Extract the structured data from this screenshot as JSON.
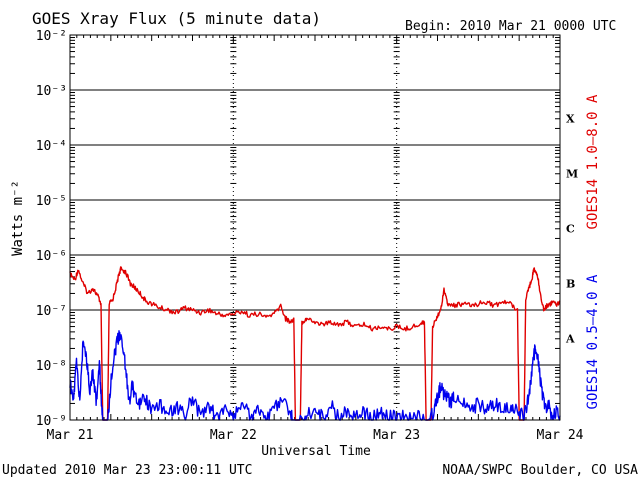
{
  "header": {
    "title": "GOES Xray Flux (5 minute data)",
    "begin": "Begin:  2010 Mar 21 0000 UTC"
  },
  "footer": {
    "updated": "Updated 2010 Mar 23 23:00:11 UTC",
    "credit": "NOAA/SWPC Boulder, CO USA"
  },
  "colors": {
    "long": "#e00000",
    "short": "#0000ee",
    "axis": "#000000"
  },
  "chart_data": {
    "type": "line",
    "title": "GOES Xray Flux (5 minute data)",
    "xlabel": "Universal Time",
    "ylabel": "Watts m⁻²",
    "y_scale": "log",
    "ylim": [
      1e-09,
      0.01
    ],
    "y_ticks": [
      1e-09,
      1e-08,
      1e-07,
      1e-06,
      1e-05,
      0.0001,
      0.001,
      0.01
    ],
    "y_tick_labels": [
      "10⁻⁹",
      "10⁻⁸",
      "10⁻⁷",
      "10⁻⁶",
      "10⁻⁵",
      "10⁻⁴",
      "10⁻³",
      "10⁻²"
    ],
    "x_tick_labels": [
      "Mar 21",
      "Mar 22",
      "Mar 23",
      "Mar 24"
    ],
    "xlim_days": [
      0,
      3
    ],
    "x_unit": "days since 2010 Mar 21 00:00 UTC",
    "flare_classes": [
      {
        "label": "A",
        "flux": 1e-08
      },
      {
        "label": "B",
        "flux": 1e-07
      },
      {
        "label": "C",
        "flux": 1e-06
      },
      {
        "label": "M",
        "flux": 1e-05
      },
      {
        "label": "X",
        "flux": 0.0001
      }
    ],
    "series": [
      {
        "name": "GOES14 1.0–8.0 A",
        "color": "#e00000",
        "points": [
          [
            0.0,
            4.5e-07
          ],
          [
            0.03,
            3.5e-07
          ],
          [
            0.05,
            5.5e-07
          ],
          [
            0.08,
            3e-07
          ],
          [
            0.11,
            2e-07
          ],
          [
            0.14,
            2.5e-07
          ],
          [
            0.17,
            1.8e-07
          ],
          [
            0.19,
            1.3e-07
          ],
          [
            0.2,
            1e-09
          ],
          [
            0.23,
            1e-09
          ],
          [
            0.24,
            1.3e-07
          ],
          [
            0.26,
            1.5e-07
          ],
          [
            0.28,
            2.5e-07
          ],
          [
            0.3,
            4.5e-07
          ],
          [
            0.31,
            5.5e-07
          ],
          [
            0.34,
            5e-07
          ],
          [
            0.37,
            3e-07
          ],
          [
            0.4,
            2.5e-07
          ],
          [
            0.43,
            2e-07
          ],
          [
            0.46,
            1.5e-07
          ],
          [
            0.5,
            1.3e-07
          ],
          [
            0.55,
            1.1e-07
          ],
          [
            0.6,
            1e-07
          ],
          [
            0.65,
            9e-08
          ],
          [
            0.7,
            1.1e-07
          ],
          [
            0.75,
            1e-07
          ],
          [
            0.8,
            9e-08
          ],
          [
            0.85,
            1e-07
          ],
          [
            0.9,
            8.5e-08
          ],
          [
            0.95,
            8e-08
          ],
          [
            1.0,
            8.5e-08
          ],
          [
            1.05,
            9.5e-08
          ],
          [
            1.1,
            8e-08
          ],
          [
            1.15,
            8.5e-08
          ],
          [
            1.2,
            7.5e-08
          ],
          [
            1.25,
            8.5e-08
          ],
          [
            1.29,
            1.2e-07
          ],
          [
            1.32,
            7e-08
          ],
          [
            1.35,
            6e-08
          ],
          [
            1.37,
            7e-08
          ],
          [
            1.38,
            1e-09
          ],
          [
            1.41,
            1e-09
          ],
          [
            1.42,
            6e-08
          ],
          [
            1.45,
            7e-08
          ],
          [
            1.5,
            6e-08
          ],
          [
            1.55,
            5.5e-08
          ],
          [
            1.6,
            6e-08
          ],
          [
            1.65,
            5.5e-08
          ],
          [
            1.7,
            6e-08
          ],
          [
            1.75,
            5e-08
          ],
          [
            1.8,
            5.5e-08
          ],
          [
            1.85,
            4.5e-08
          ],
          [
            1.9,
            5e-08
          ],
          [
            1.95,
            4.5e-08
          ],
          [
            2.0,
            5e-08
          ],
          [
            2.05,
            4.5e-08
          ],
          [
            2.1,
            5e-08
          ],
          [
            2.15,
            5.5e-08
          ],
          [
            2.17,
            6.5e-08
          ],
          [
            2.18,
            1e-09
          ],
          [
            2.21,
            1e-09
          ],
          [
            2.22,
            5e-08
          ],
          [
            2.25,
            8e-08
          ],
          [
            2.27,
            1e-07
          ],
          [
            2.29,
            2.5e-07
          ],
          [
            2.31,
            1.3e-07
          ],
          [
            2.35,
            1.2e-07
          ],
          [
            2.4,
            1.3e-07
          ],
          [
            2.45,
            1.2e-07
          ],
          [
            2.5,
            1.3e-07
          ],
          [
            2.55,
            1.4e-07
          ],
          [
            2.6,
            1.2e-07
          ],
          [
            2.65,
            1.4e-07
          ],
          [
            2.7,
            1.3e-07
          ],
          [
            2.74,
            1e-07
          ],
          [
            2.75,
            1e-09
          ],
          [
            2.78,
            1e-09
          ],
          [
            2.79,
            1.5e-07
          ],
          [
            2.81,
            2.5e-07
          ],
          [
            2.83,
            4e-07
          ],
          [
            2.84,
            5.5e-07
          ],
          [
            2.86,
            4.5e-07
          ],
          [
            2.88,
            2e-07
          ],
          [
            2.9,
            1e-07
          ],
          [
            2.92,
            1.2e-07
          ],
          [
            2.94,
            1.3e-07
          ],
          [
            2.96,
            1.4e-07
          ],
          [
            2.98,
            1.3e-07
          ],
          [
            3.0,
            1.4e-07
          ]
        ]
      },
      {
        "name": "GOES14 0.5–4.0 A",
        "color": "#0000ee",
        "points": [
          [
            0.0,
            5e-09
          ],
          [
            0.02,
            2e-09
          ],
          [
            0.04,
            1.2e-08
          ],
          [
            0.06,
            2e-09
          ],
          [
            0.08,
            3e-08
          ],
          [
            0.1,
            1.5e-08
          ],
          [
            0.12,
            3e-09
          ],
          [
            0.14,
            8e-09
          ],
          [
            0.16,
            2e-09
          ],
          [
            0.18,
            1.2e-08
          ],
          [
            0.19,
            3e-09
          ],
          [
            0.2,
            1e-09
          ],
          [
            0.23,
            1e-09
          ],
          [
            0.24,
            2e-09
          ],
          [
            0.26,
            1e-08
          ],
          [
            0.28,
            2e-08
          ],
          [
            0.3,
            3.5e-08
          ],
          [
            0.32,
            2.5e-08
          ],
          [
            0.34,
            1e-08
          ],
          [
            0.36,
            2e-09
          ],
          [
            0.38,
            4e-09
          ],
          [
            0.4,
            3e-09
          ],
          [
            0.43,
            2e-09
          ],
          [
            0.46,
            2.5e-09
          ],
          [
            0.5,
            1.5e-09
          ],
          [
            0.55,
            2e-09
          ],
          [
            0.6,
            1.2e-09
          ],
          [
            0.65,
            1.8e-09
          ],
          [
            0.7,
            1.2e-09
          ],
          [
            0.75,
            2.5e-09
          ],
          [
            0.8,
            1.2e-09
          ],
          [
            0.85,
            1.8e-09
          ],
          [
            0.9,
            1.1e-09
          ],
          [
            0.95,
            1.5e-09
          ],
          [
            1.0,
            1.2e-09
          ],
          [
            1.05,
            2e-09
          ],
          [
            1.1,
            1.2e-09
          ],
          [
            1.15,
            1.6e-09
          ],
          [
            1.2,
            1.1e-09
          ],
          [
            1.25,
            1.5e-09
          ],
          [
            1.3,
            2.5e-09
          ],
          [
            1.35,
            1.2e-09
          ],
          [
            1.37,
            1e-09
          ],
          [
            1.41,
            1e-09
          ],
          [
            1.45,
            1.2e-09
          ],
          [
            1.5,
            1.5e-09
          ],
          [
            1.55,
            1.1e-09
          ],
          [
            1.6,
            1.8e-09
          ],
          [
            1.65,
            1.1e-09
          ],
          [
            1.7,
            1.5e-09
          ],
          [
            1.75,
            1.2e-09
          ],
          [
            1.8,
            1.4e-09
          ],
          [
            1.85,
            1.1e-09
          ],
          [
            1.9,
            1.3e-09
          ],
          [
            1.95,
            1.1e-09
          ],
          [
            2.0,
            1.2e-09
          ],
          [
            2.05,
            1.1e-09
          ],
          [
            2.1,
            1.2e-09
          ],
          [
            2.15,
            1.1e-09
          ],
          [
            2.2,
            1e-09
          ],
          [
            2.23,
            1.5e-09
          ],
          [
            2.25,
            2.5e-09
          ],
          [
            2.27,
            4e-09
          ],
          [
            2.29,
            3e-09
          ],
          [
            2.31,
            2.5e-09
          ],
          [
            2.33,
            2e-09
          ],
          [
            2.35,
            2.5e-09
          ],
          [
            2.4,
            2e-09
          ],
          [
            2.45,
            1.5e-09
          ],
          [
            2.5,
            2e-09
          ],
          [
            2.55,
            1.6e-09
          ],
          [
            2.6,
            2e-09
          ],
          [
            2.65,
            1.5e-09
          ],
          [
            2.7,
            1.8e-09
          ],
          [
            2.74,
            1.4e-09
          ],
          [
            2.78,
            1.2e-09
          ],
          [
            2.8,
            2e-09
          ],
          [
            2.82,
            5e-09
          ],
          [
            2.84,
            1.5e-08
          ],
          [
            2.85,
            2e-08
          ],
          [
            2.87,
            1e-08
          ],
          [
            2.89,
            3e-09
          ],
          [
            2.91,
            1.5e-09
          ],
          [
            2.93,
            1.8e-09
          ],
          [
            2.95,
            1.2e-09
          ],
          [
            2.97,
            1.4e-09
          ],
          [
            3.0,
            1.2e-09
          ]
        ]
      }
    ]
  }
}
